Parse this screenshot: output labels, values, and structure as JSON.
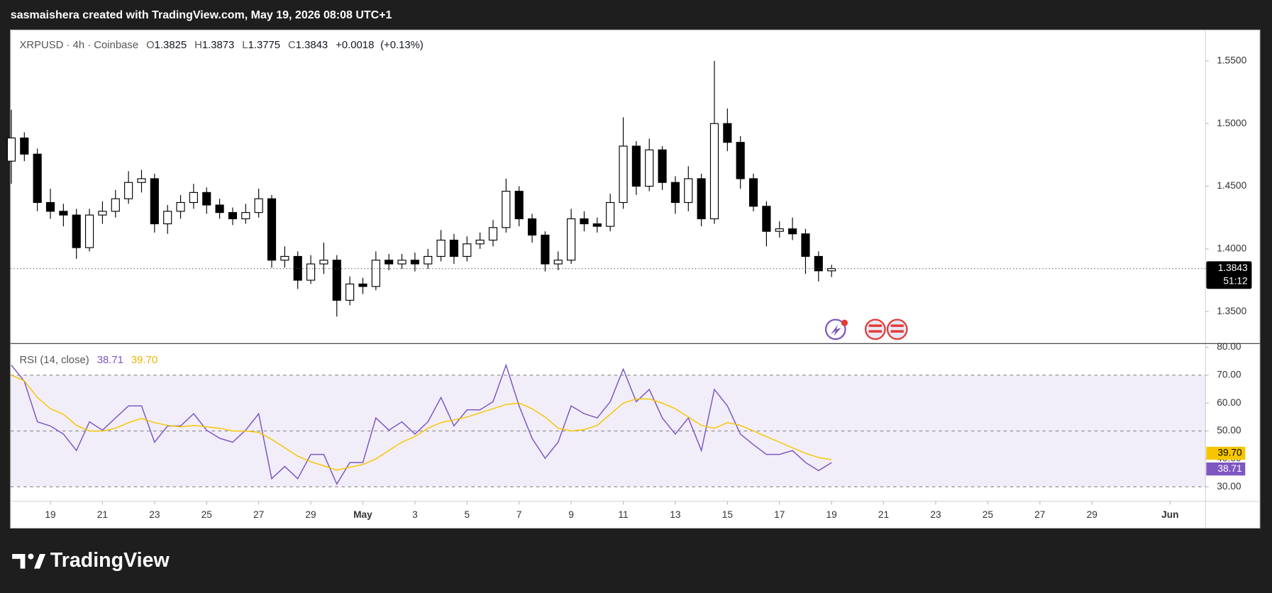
{
  "watermark": "sasmaishera created with TradingView.com, May 19, 2026 08:08 UTC+1",
  "brand": "TradingView",
  "chart_data": [
    {
      "type": "candlestick",
      "title": "XRPUSD · 4h · Coinbase",
      "ohlc_labels": [
        "O",
        "H",
        "L",
        "C"
      ],
      "change": {
        "value": 0.0018,
        "label": "+0.0018"
      },
      "change_pct": {
        "value": 0.13,
        "label": "(+0.13%)"
      },
      "countdown": "51:12",
      "x": [
        -1.5,
        -1,
        -0.5,
        0,
        0.5,
        1,
        1.5,
        2,
        2.5,
        3,
        3.5,
        4,
        4.5,
        5,
        5.5,
        6,
        6.5,
        7,
        7.5,
        8,
        8.5,
        9,
        9.5,
        10,
        10.5,
        11,
        11.5,
        12,
        12.5,
        13,
        13.5,
        14,
        14.5,
        15,
        15.5,
        16,
        16.5,
        17,
        17.5,
        18,
        18.5,
        19,
        19.5,
        20,
        20.5,
        21,
        21.5,
        22,
        22.5,
        23,
        23.5,
        24,
        24.5,
        25,
        25.5,
        26,
        26.5,
        27,
        27.5,
        28,
        28.5,
        29,
        29.5,
        30
      ],
      "open": [
        1.47,
        1.4885,
        1.4756,
        1.437,
        1.43,
        1.427,
        1.401,
        1.427,
        1.43,
        1.44,
        1.453,
        1.456,
        1.42,
        1.43,
        1.437,
        1.445,
        1.435,
        1.429,
        1.424,
        1.429,
        1.44,
        1.391,
        1.394,
        1.375,
        1.388,
        1.391,
        1.359,
        1.372,
        1.37,
        1.391,
        1.388,
        1.391,
        1.388,
        1.394,
        1.407,
        1.394,
        1.404,
        1.407,
        1.417,
        1.446,
        1.424,
        1.411,
        1.388,
        1.391,
        1.424,
        1.42,
        1.418,
        1.437,
        1.482,
        1.45,
        1.479,
        1.453,
        1.437,
        1.456,
        1.424,
        1.5,
        1.485,
        1.456,
        1.434,
        1.414,
        1.416,
        1.412,
        1.394,
        1.3825
      ],
      "high": [
        1.511,
        1.493,
        1.48,
        1.448,
        1.436,
        1.432,
        1.432,
        1.438,
        1.447,
        1.462,
        1.463,
        1.46,
        1.435,
        1.443,
        1.452,
        1.449,
        1.44,
        1.433,
        1.436,
        1.448,
        1.443,
        1.402,
        1.398,
        1.395,
        1.405,
        1.395,
        1.378,
        1.377,
        1.398,
        1.396,
        1.396,
        1.397,
        1.4,
        1.415,
        1.412,
        1.41,
        1.413,
        1.423,
        1.456,
        1.45,
        1.428,
        1.414,
        1.398,
        1.432,
        1.43,
        1.425,
        1.444,
        1.505,
        1.486,
        1.488,
        1.482,
        1.458,
        1.466,
        1.46,
        1.55,
        1.512,
        1.49,
        1.46,
        1.438,
        1.422,
        1.425,
        1.416,
        1.398,
        1.3873
      ],
      "low": [
        1.452,
        1.47,
        1.43,
        1.424,
        1.418,
        1.392,
        1.398,
        1.42,
        1.425,
        1.436,
        1.445,
        1.413,
        1.412,
        1.424,
        1.432,
        1.428,
        1.424,
        1.419,
        1.42,
        1.425,
        1.385,
        1.385,
        1.368,
        1.372,
        1.38,
        1.346,
        1.355,
        1.364,
        1.367,
        1.383,
        1.384,
        1.382,
        1.384,
        1.39,
        1.388,
        1.39,
        1.4,
        1.402,
        1.413,
        1.418,
        1.405,
        1.382,
        1.383,
        1.388,
        1.414,
        1.413,
        1.414,
        1.432,
        1.443,
        1.446,
        1.447,
        1.428,
        1.43,
        1.418,
        1.42,
        1.478,
        1.448,
        1.43,
        1.402,
        1.409,
        1.407,
        1.38,
        1.374,
        1.3775
      ],
      "close": [
        1.4885,
        1.4756,
        1.437,
        1.43,
        1.427,
        1.401,
        1.427,
        1.43,
        1.44,
        1.453,
        1.456,
        1.42,
        1.43,
        1.437,
        1.445,
        1.435,
        1.429,
        1.424,
        1.429,
        1.44,
        1.391,
        1.394,
        1.375,
        1.388,
        1.391,
        1.359,
        1.372,
        1.37,
        1.391,
        1.388,
        1.391,
        1.388,
        1.394,
        1.407,
        1.394,
        1.404,
        1.407,
        1.417,
        1.446,
        1.424,
        1.411,
        1.388,
        1.391,
        1.424,
        1.42,
        1.418,
        1.437,
        1.482,
        1.45,
        1.479,
        1.453,
        1.437,
        1.456,
        1.424,
        1.5,
        1.485,
        1.456,
        1.434,
        1.414,
        1.416,
        1.412,
        1.394,
        1.3825,
        1.3843
      ],
      "up_color": "#ffffff",
      "down_color": "#000000",
      "edge_color": "#000000",
      "xlim": [
        -1.53,
        44.36
      ],
      "xticks": [
        {
          "value": 0,
          "label": "19"
        },
        {
          "value": 2,
          "label": "21"
        },
        {
          "value": 4,
          "label": "23"
        },
        {
          "value": 6,
          "label": "25"
        },
        {
          "value": 8,
          "label": "27"
        },
        {
          "value": 10,
          "label": "29"
        },
        {
          "value": 12,
          "label": "May"
        },
        {
          "value": 14,
          "label": "3"
        },
        {
          "value": 16,
          "label": "5"
        },
        {
          "value": 18,
          "label": "7"
        },
        {
          "value": 20,
          "label": "9"
        },
        {
          "value": 22,
          "label": "11"
        },
        {
          "value": 24,
          "label": "13"
        },
        {
          "value": 26,
          "label": "15"
        },
        {
          "value": 28,
          "label": "17"
        },
        {
          "value": 30,
          "label": "19"
        },
        {
          "value": 32,
          "label": "21"
        },
        {
          "value": 34,
          "label": "23"
        },
        {
          "value": 36,
          "label": "25"
        },
        {
          "value": 38,
          "label": "27"
        },
        {
          "value": 40,
          "label": "29"
        },
        {
          "value": 43,
          "label": "Jun"
        }
      ],
      "ylim": [
        1.3248,
        1.5746
      ],
      "yticks": [
        {
          "value": 1.35,
          "label": "1.3500"
        },
        {
          "value": 1.4,
          "label": "1.4000"
        },
        {
          "value": 1.45,
          "label": "1.4500"
        },
        {
          "value": 1.5,
          "label": "1.5000"
        },
        {
          "value": 1.55,
          "label": "1.5500"
        }
      ]
    },
    {
      "type": "line",
      "title": "RSI (14, close)",
      "x": [
        -1.5,
        -1,
        -0.5,
        0,
        0.5,
        1,
        1.5,
        2,
        2.5,
        3,
        3.5,
        4,
        4.5,
        5,
        5.5,
        6,
        6.5,
        7,
        7.5,
        8,
        8.5,
        9,
        9.5,
        10,
        10.5,
        11,
        11.5,
        12,
        12.5,
        13,
        13.5,
        14,
        14.5,
        15,
        15.5,
        16,
        16.5,
        17,
        17.5,
        18,
        18.5,
        19,
        19.5,
        20,
        20.5,
        21,
        21.5,
        22,
        22.5,
        23,
        23.5,
        24,
        24.5,
        25,
        25.5,
        26,
        26.5,
        27,
        27.5,
        28,
        28.5,
        29,
        29.5,
        30
      ],
      "series": [
        {
          "color": "#7e57c2",
          "values": [
            73.6,
            67.8,
            53.3,
            51.8,
            48.9,
            43,
            53.3,
            50.3,
            54.7,
            59,
            59,
            46,
            51.8,
            51.8,
            56.2,
            50.3,
            47.4,
            46,
            50.3,
            56.2,
            32.9,
            37.3,
            32.9,
            41.6,
            41.6,
            31,
            38.7,
            38.7,
            54.7,
            50.3,
            53.3,
            48.9,
            53.3,
            62,
            51.8,
            57.6,
            57.6,
            60.5,
            73.6,
            59,
            47.4,
            40.2,
            46,
            59,
            56.2,
            54.7,
            60.5,
            72.2,
            60.5,
            64.9,
            54.7,
            48.9,
            54.7,
            43,
            64.9,
            59,
            48.9,
            45.1,
            41.6,
            41.6,
            43,
            38.7,
            35.8,
            38.71
          ]
        },
        {
          "color": "#f7c600",
          "values": [
            70,
            68,
            62,
            58,
            56,
            52,
            50,
            50,
            51,
            53,
            54.5,
            53,
            52,
            51.5,
            52,
            51.5,
            51,
            50,
            50,
            49.5,
            47,
            44,
            41,
            39,
            37.5,
            36,
            37,
            38,
            40,
            43,
            46,
            48,
            51,
            53,
            54,
            55,
            56.5,
            58,
            59.5,
            60,
            58,
            55,
            51,
            50,
            50.5,
            52,
            56,
            60,
            61.5,
            61.5,
            60,
            58,
            55,
            52,
            51,
            53,
            52,
            50,
            48,
            46,
            44,
            42,
            40.5,
            39.7
          ],
          "value_labels": [
            null,
            null,
            null,
            null,
            null,
            null,
            null,
            null,
            null,
            null,
            null,
            null,
            null,
            null,
            null,
            null,
            null,
            null,
            null,
            null,
            null,
            null,
            null,
            null,
            null,
            null,
            null,
            null,
            null,
            null,
            null,
            null,
            null,
            null,
            null,
            null,
            null,
            null,
            null,
            null,
            null,
            null,
            null,
            null,
            null,
            null,
            null,
            null,
            null,
            null,
            null,
            null,
            null,
            null,
            null,
            null,
            null,
            null,
            null,
            null,
            null,
            null,
            null,
            "39.70"
          ]
        }
      ],
      "levels": [
        70,
        50,
        30
      ],
      "band_color": "#7e57c2",
      "xlim": [
        -1.53,
        44.36
      ],
      "ylim": [
        24.8,
        81.2
      ],
      "yticks": [
        {
          "value": 30,
          "label": "30.00"
        },
        {
          "value": 40,
          "label": "40.00"
        },
        {
          "value": 50,
          "label": "50.00"
        },
        {
          "value": 60,
          "label": "60.00"
        },
        {
          "value": 70,
          "label": "70.00"
        },
        {
          "value": 80,
          "label": "80.00"
        }
      ]
    }
  ]
}
